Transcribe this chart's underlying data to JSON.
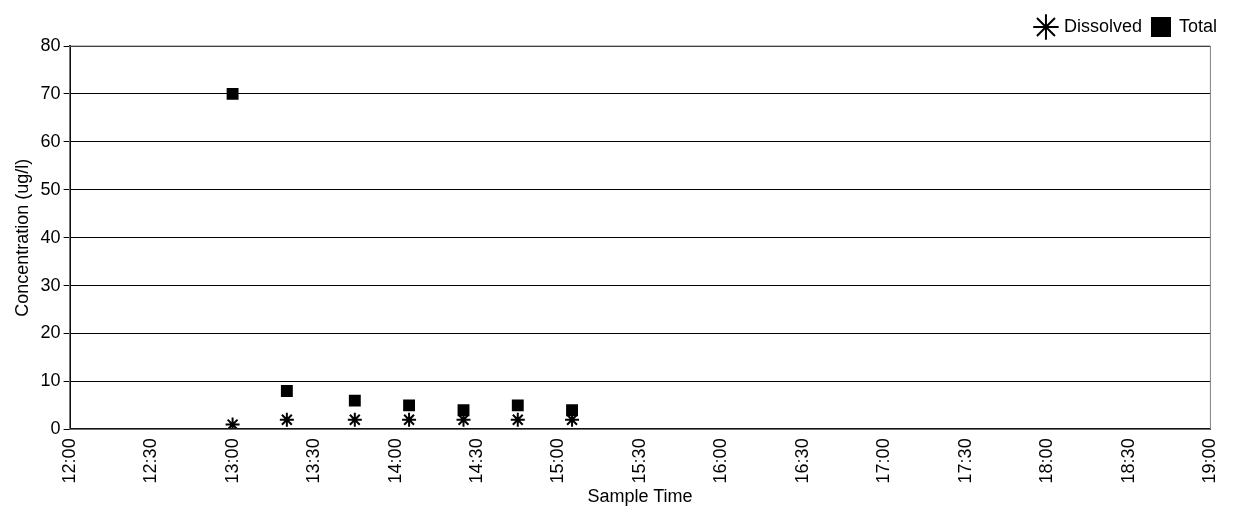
{
  "chart_data": {
    "type": "scatter",
    "xlabel": "Sample Time",
    "ylabel": "Concentration (ug/l)",
    "series": [
      {
        "name": "Dissolved",
        "color": "#000000",
        "marker": "cross",
        "x": [
          13,
          13.333,
          13.75,
          14.083,
          14.417,
          14.75,
          15.083
        ],
        "values": [
          1,
          2,
          2,
          2,
          2,
          2,
          2
        ]
      },
      {
        "name": "Total",
        "color": "#000000",
        "marker": "square",
        "x": [
          13,
          13.333,
          13.75,
          14.083,
          14.417,
          14.75,
          15.083
        ],
        "values": [
          70,
          8,
          6,
          5,
          4,
          5,
          4
        ]
      }
    ],
    "xlim": [
      12,
      19
    ],
    "xticks": [
      {
        "value": 12,
        "label": "12:00"
      },
      {
        "value": 12.5,
        "label": "12:30"
      },
      {
        "value": 13,
        "label": "13:00"
      },
      {
        "value": 13.5,
        "label": "13:30"
      },
      {
        "value": 14,
        "label": "14:00"
      },
      {
        "value": 14.5,
        "label": "14:30"
      },
      {
        "value": 15,
        "label": "15:00"
      },
      {
        "value": 15.5,
        "label": "15:30"
      },
      {
        "value": 16,
        "label": "16:00"
      },
      {
        "value": 16.5,
        "label": "16:30"
      },
      {
        "value": 17,
        "label": "17:00"
      },
      {
        "value": 17.5,
        "label": "17:30"
      },
      {
        "value": 18,
        "label": "18:00"
      },
      {
        "value": 18.5,
        "label": "18:30"
      },
      {
        "value": 19,
        "label": "19:00"
      }
    ],
    "ylim": [
      0,
      80
    ],
    "yticks": [
      0,
      10,
      20,
      30,
      40,
      50,
      60,
      70,
      80
    ],
    "grid": "y",
    "legend": "top right"
  }
}
